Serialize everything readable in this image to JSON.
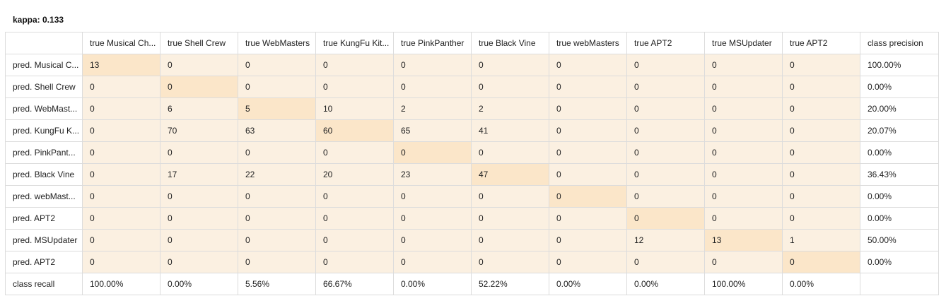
{
  "kappa_label": "kappa: 0.133",
  "colors": {
    "cell_bg": "#fbf0e1",
    "diagonal_bg": "#fbe6c9",
    "border": "#dcdcdc"
  },
  "header": {
    "corner": "",
    "columns": [
      "true Musical Ch...",
      "true Shell Crew",
      "true WebMasters",
      "true KungFu Kit...",
      "true PinkPanther",
      "true Black Vine",
      "true webMasters",
      "true APT2",
      "true MSUpdater",
      "true APT2"
    ],
    "precision_label": "class precision"
  },
  "rows": [
    {
      "label": "pred. Musical C...",
      "values": [
        "13",
        "0",
        "0",
        "0",
        "0",
        "0",
        "0",
        "0",
        "0",
        "0"
      ],
      "precision": "100.00%"
    },
    {
      "label": "pred. Shell Crew",
      "values": [
        "0",
        "0",
        "0",
        "0",
        "0",
        "0",
        "0",
        "0",
        "0",
        "0"
      ],
      "precision": "0.00%"
    },
    {
      "label": "pred. WebMast...",
      "values": [
        "0",
        "6",
        "5",
        "10",
        "2",
        "2",
        "0",
        "0",
        "0",
        "0"
      ],
      "precision": "20.00%"
    },
    {
      "label": "pred. KungFu K...",
      "values": [
        "0",
        "70",
        "63",
        "60",
        "65",
        "41",
        "0",
        "0",
        "0",
        "0"
      ],
      "precision": "20.07%"
    },
    {
      "label": "pred. PinkPant...",
      "values": [
        "0",
        "0",
        "0",
        "0",
        "0",
        "0",
        "0",
        "0",
        "0",
        "0"
      ],
      "precision": "0.00%"
    },
    {
      "label": "pred. Black Vine",
      "values": [
        "0",
        "17",
        "22",
        "20",
        "23",
        "47",
        "0",
        "0",
        "0",
        "0"
      ],
      "precision": "36.43%"
    },
    {
      "label": "pred. webMast...",
      "values": [
        "0",
        "0",
        "0",
        "0",
        "0",
        "0",
        "0",
        "0",
        "0",
        "0"
      ],
      "precision": "0.00%"
    },
    {
      "label": "pred. APT2",
      "values": [
        "0",
        "0",
        "0",
        "0",
        "0",
        "0",
        "0",
        "0",
        "0",
        "0"
      ],
      "precision": "0.00%"
    },
    {
      "label": "pred. MSUpdater",
      "values": [
        "0",
        "0",
        "0",
        "0",
        "0",
        "0",
        "0",
        "12",
        "13",
        "1"
      ],
      "precision": "50.00%"
    },
    {
      "label": "pred. APT2",
      "values": [
        "0",
        "0",
        "0",
        "0",
        "0",
        "0",
        "0",
        "0",
        "0",
        "0"
      ],
      "precision": "0.00%"
    }
  ],
  "recall": {
    "label": "class recall",
    "values": [
      "100.00%",
      "0.00%",
      "5.56%",
      "66.67%",
      "0.00%",
      "52.22%",
      "0.00%",
      "0.00%",
      "100.00%",
      "0.00%"
    ],
    "corner": ""
  }
}
